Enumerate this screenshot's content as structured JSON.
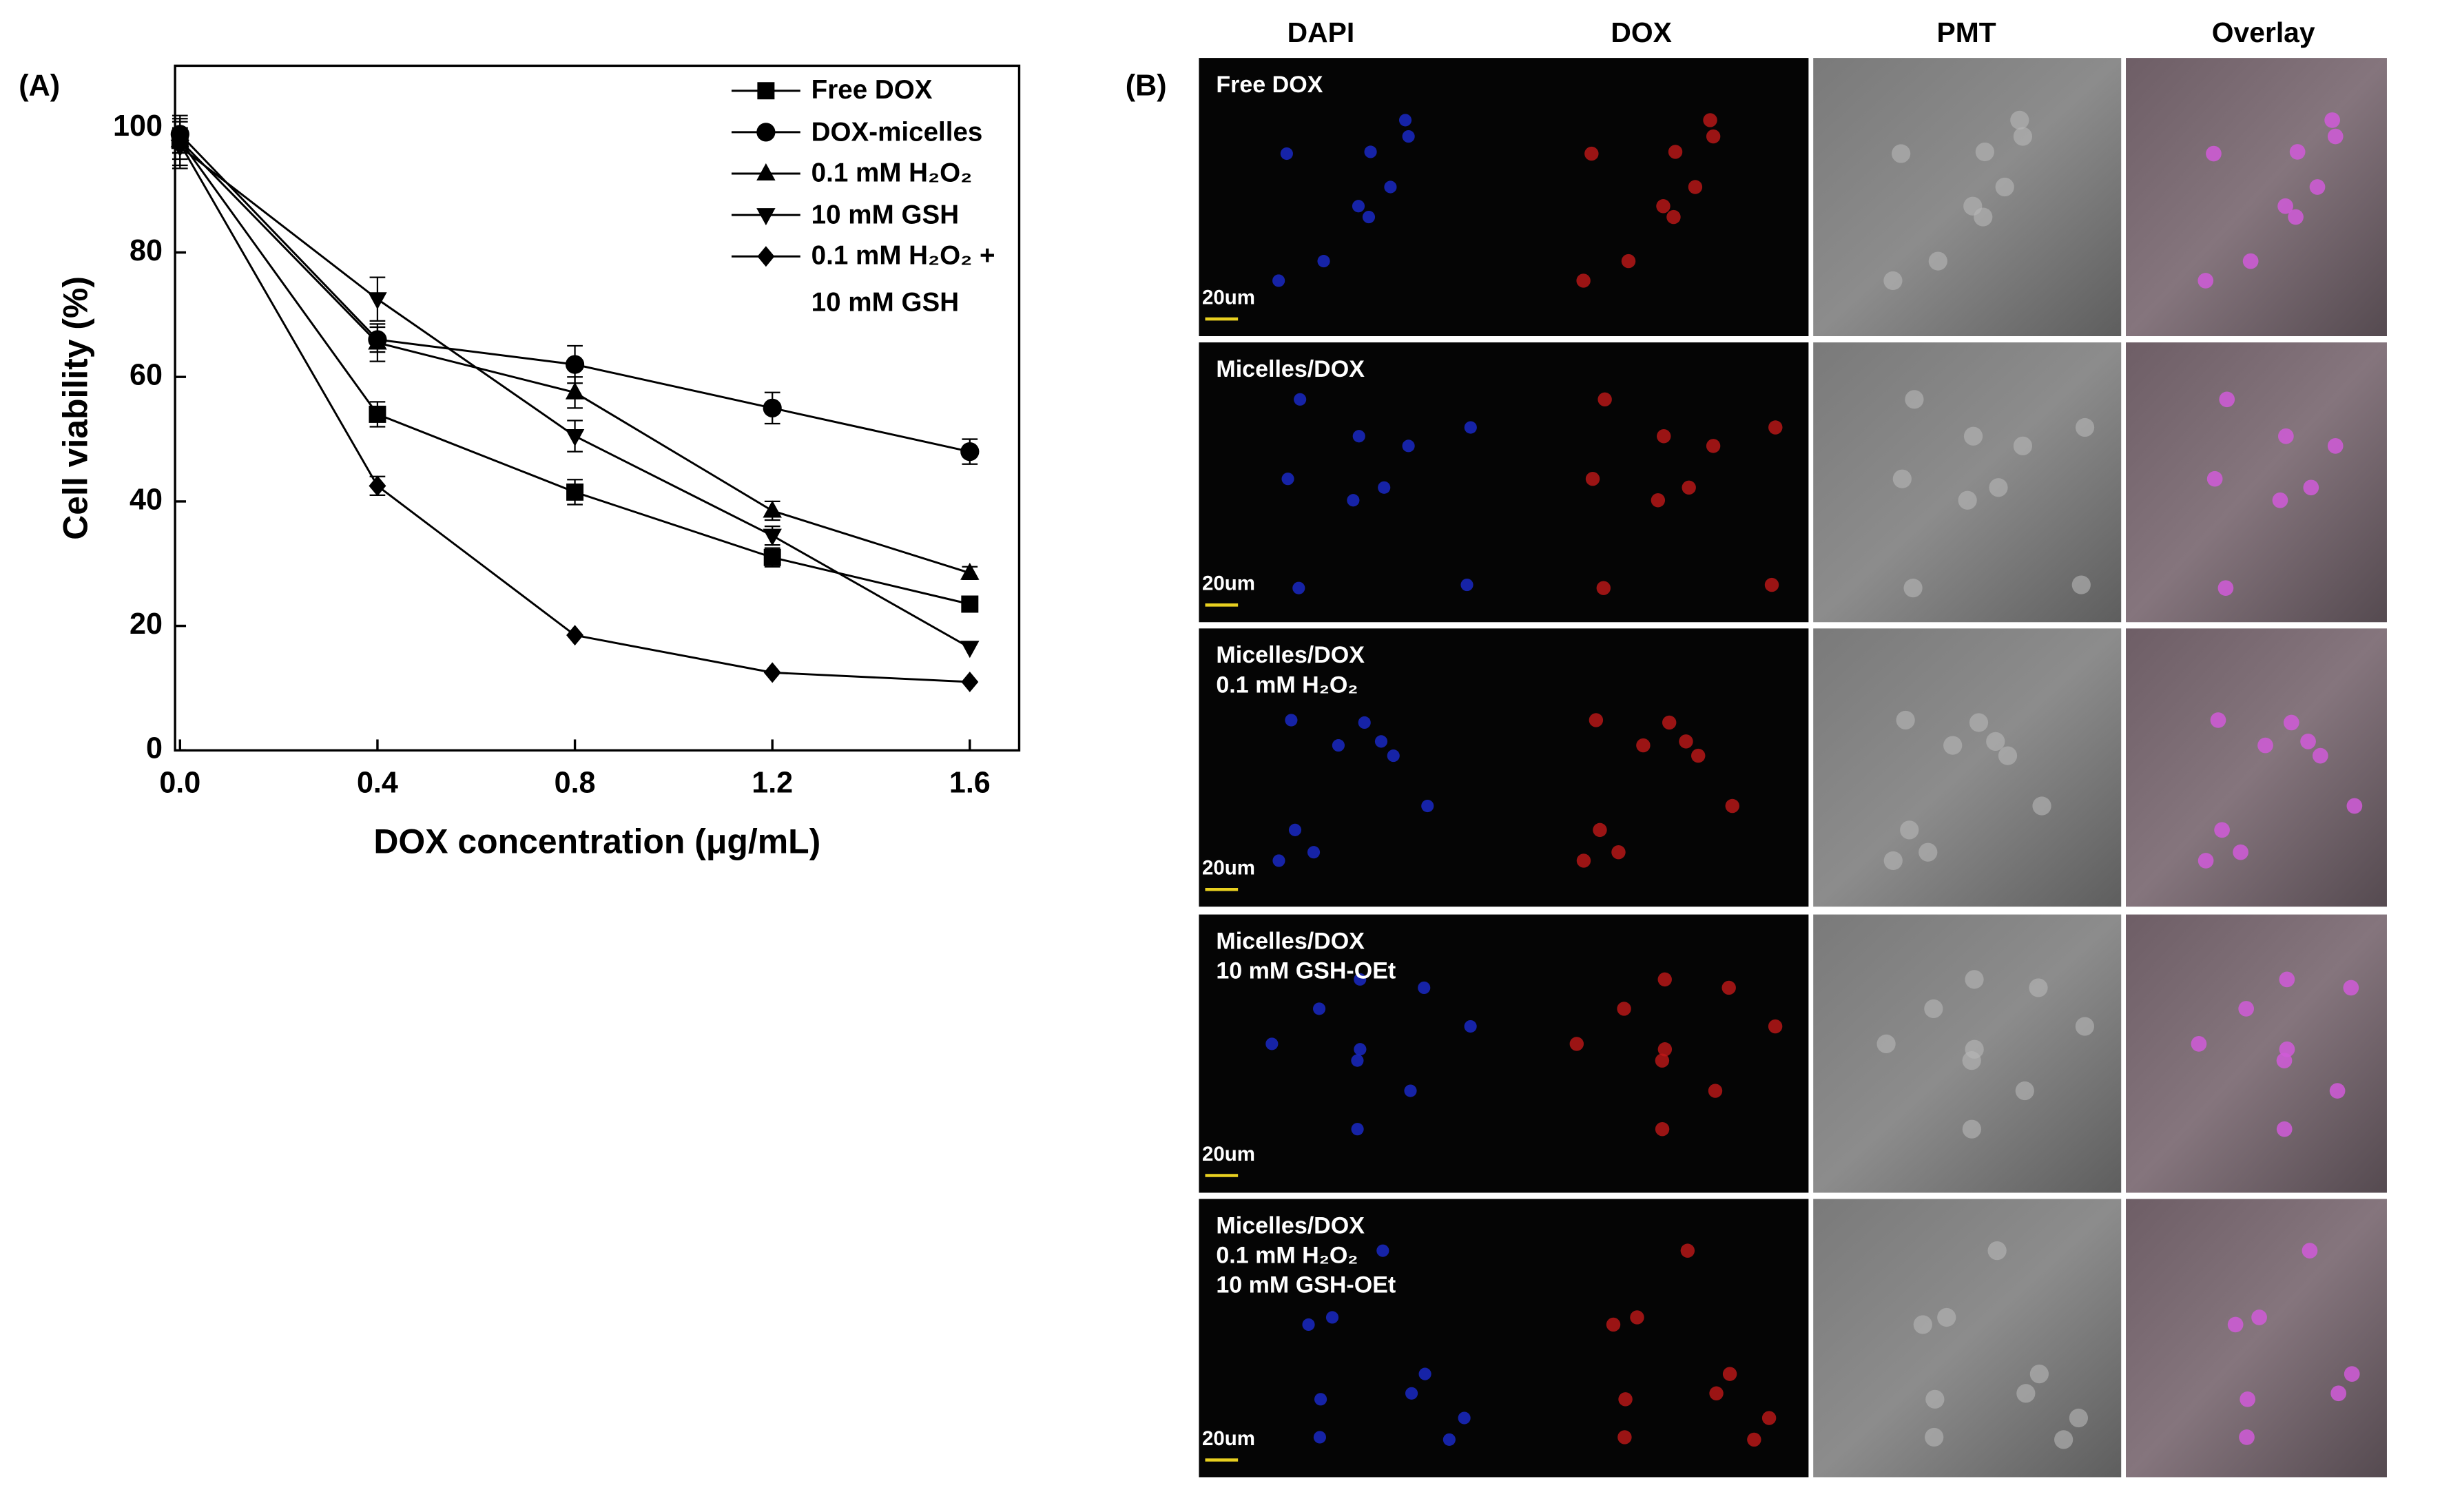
{
  "chart_data": {
    "type": "line",
    "panel_label": "(A)",
    "x_label": "DOX concentration (μg/mL)",
    "y_label": "Cell viability (%)",
    "x": [
      0,
      0.4,
      0.8,
      1.2,
      1.6
    ],
    "series": [
      {
        "name": "Free DOX",
        "color": "#000000",
        "marker": "square",
        "values": [
          98,
          54,
          41.5,
          31,
          23.5
        ],
        "errors": [
          2,
          2,
          2,
          1.5,
          0
        ]
      },
      {
        "name": "DOX-micelles",
        "color": "#000000",
        "marker": "circle",
        "values": [
          99,
          66,
          62,
          55,
          48
        ],
        "errors": [
          3,
          2,
          3,
          2.5,
          2
        ]
      },
      {
        "name": "0.1 mM H₂O₂",
        "color": "#000000",
        "marker": "triangle-up",
        "values": [
          98,
          65.5,
          57.5,
          38.5,
          28.5
        ],
        "errors": [
          3,
          3,
          2.5,
          1.5,
          1
        ]
      },
      {
        "name": "10 mM GSH",
        "color": "#000000",
        "marker": "triangle-down",
        "values": [
          97,
          72.5,
          50.5,
          34.5,
          16.5
        ],
        "errors": [
          3,
          3.5,
          2.5,
          1.5,
          0
        ]
      },
      {
        "name": "0.1 mM H₂O₂ + 10 mM GSH",
        "color": "#000000",
        "marker": "diamond",
        "values": [
          97.5,
          42.5,
          18.5,
          12.5,
          11
        ],
        "errors": [
          4,
          1.5,
          0,
          0,
          0
        ]
      }
    ],
    "xlim": [
      -0.01,
      1.7
    ],
    "ylim": [
      0,
      110
    ],
    "xticks": [
      {
        "value": 0,
        "label": "0.0"
      },
      0.4,
      0.8,
      1.2,
      1.6
    ],
    "yticks": [
      0,
      20,
      40,
      60,
      80,
      100
    ],
    "grid": false
  },
  "panel_b": {
    "panel_label": "(B)",
    "columns": [
      "DAPI",
      "DOX",
      "PMT",
      "Overlay"
    ],
    "rows": [
      {
        "label": [
          "Free DOX"
        ],
        "scale_bar": "20um"
      },
      {
        "label": [
          "Micelles/DOX"
        ],
        "scale_bar": "20um"
      },
      {
        "label": [
          "Micelles/DOX",
          "0.1 mM H₂O₂"
        ],
        "scale_bar": "20um"
      },
      {
        "label": [
          "Micelles/DOX",
          "10 mM GSH-OEt"
        ],
        "scale_bar": "20um"
      },
      {
        "label": [
          "Micelles/DOX",
          "0.1 mM H₂O₂",
          "10 mM GSH-OEt"
        ],
        "scale_bar": "20um"
      }
    ]
  }
}
